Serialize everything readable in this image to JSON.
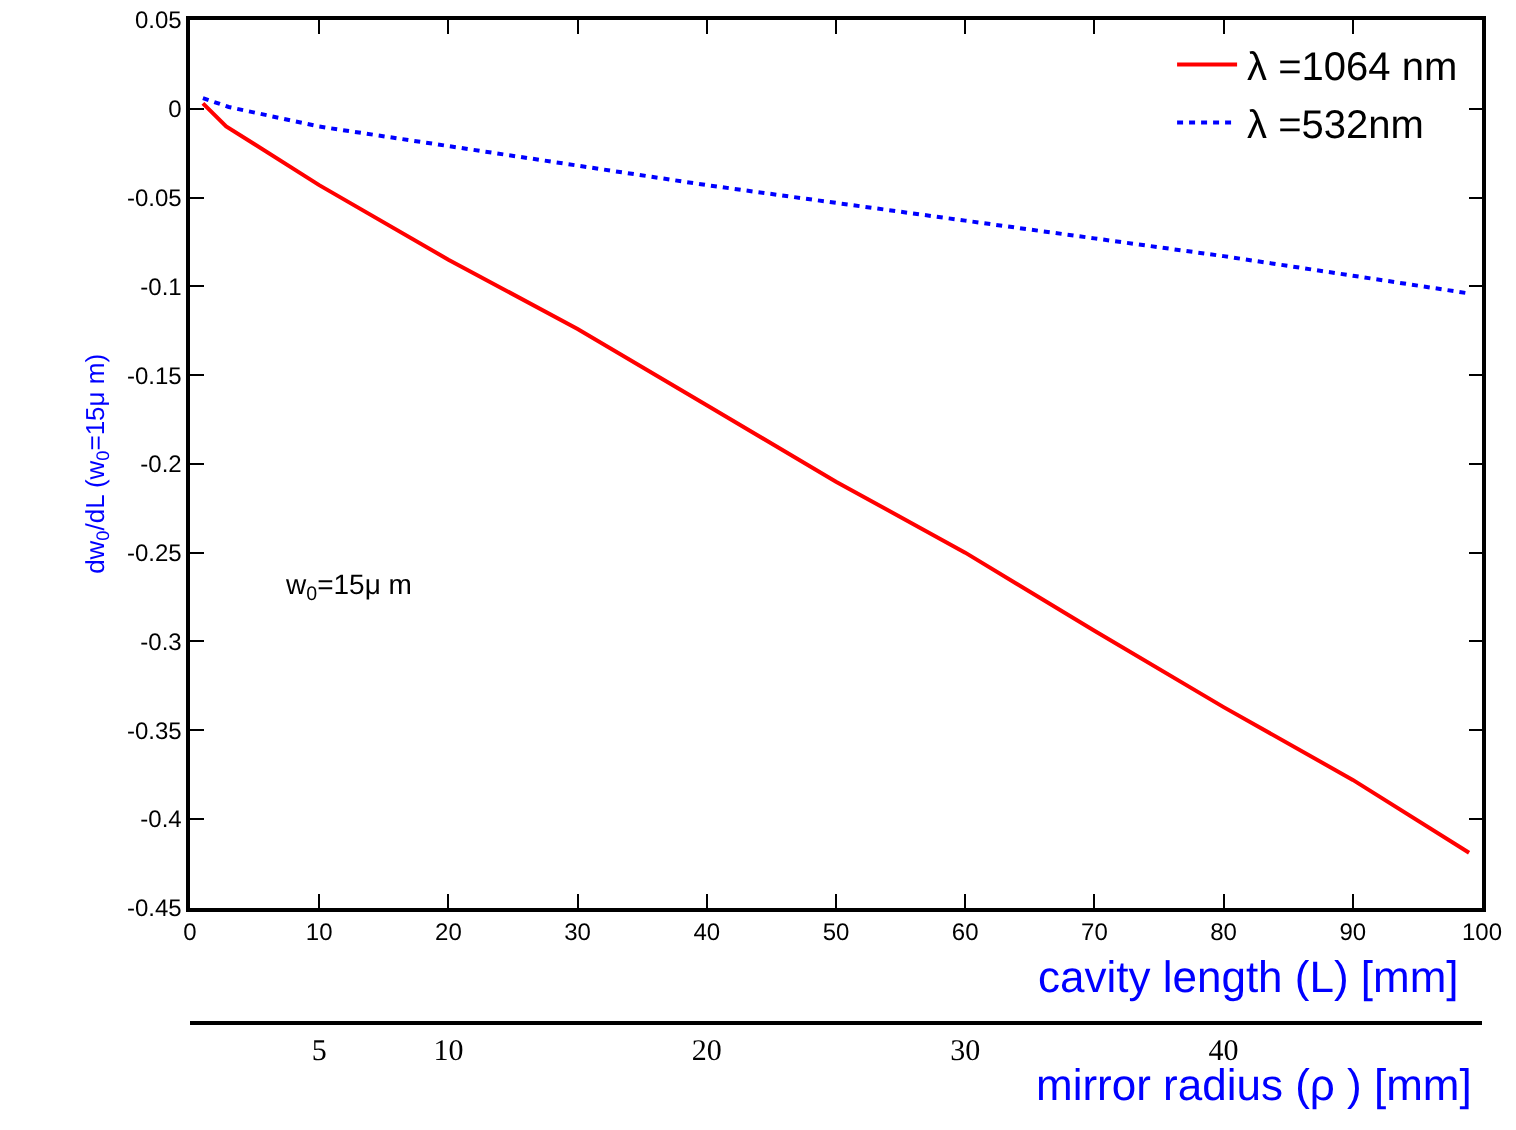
{
  "chart_data": {
    "type": "line",
    "xlabel": "cavity length (L) [mm]",
    "ylabel": "dw$_{0}$/dL (w$_{0}$=15μ m)",
    "x2label": "mirror radius (ρ ) [mm]",
    "annotations": [
      "w$_{0}$=15μ m"
    ],
    "x": [
      1,
      2.8,
      5,
      10,
      20,
      30,
      40,
      50,
      60,
      70,
      80,
      90,
      99
    ],
    "series": [
      {
        "name": "λ =1064 nm",
        "color": "#ff0000",
        "line_style": "solid",
        "values": [
          0.003,
          -0.01,
          -0.02,
          -0.043,
          -0.085,
          -0.124,
          -0.167,
          -0.21,
          -0.25,
          -0.294,
          -0.337,
          -0.378,
          -0.419
        ]
      },
      {
        "name": "λ =532nm",
        "color": "#0000ff",
        "line_style": "dotted",
        "x": [
          1,
          3,
          10,
          20,
          30,
          40,
          50,
          60,
          70,
          80,
          90,
          99
        ],
        "values": [
          0.006,
          0.001,
          -0.01,
          -0.021,
          -0.032,
          -0.043,
          -0.053,
          -0.063,
          -0.073,
          -0.083,
          -0.094,
          -0.104
        ]
      }
    ],
    "xlim": [
      0,
      100
    ],
    "xticks": [
      0,
      10,
      20,
      30,
      40,
      50,
      60,
      70,
      80,
      90,
      100
    ],
    "ylim": [
      -0.45,
      0.05
    ],
    "yticks": [
      -0.45,
      -0.4,
      -0.35,
      -0.3,
      -0.25,
      -0.2,
      -0.15,
      -0.1,
      -0.05,
      0,
      0.05
    ],
    "x2lim": [
      0,
      50
    ],
    "x2ticks": [
      5,
      10,
      20,
      30,
      40
    ],
    "legend": "top right",
    "marker": "none"
  }
}
